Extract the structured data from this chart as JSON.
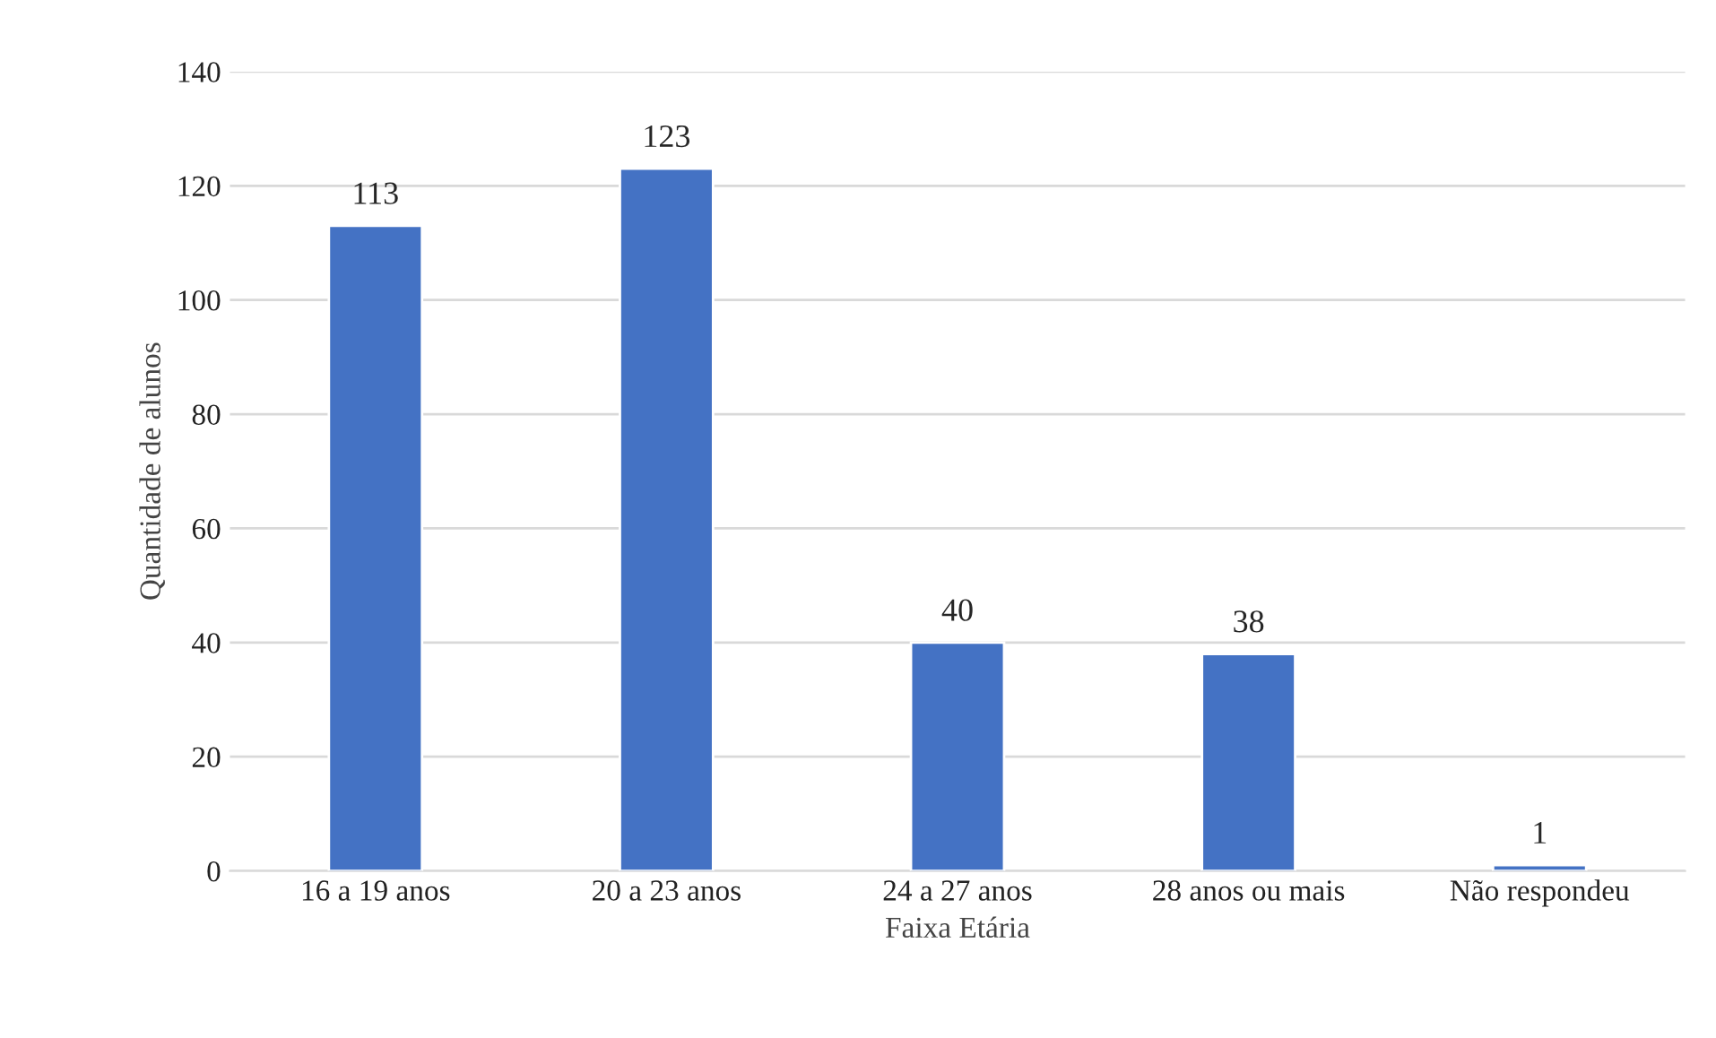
{
  "chart_data": {
    "type": "bar",
    "xlabel": "Faixa Etária",
    "ylabel": "Quantidade de alunos",
    "categories": [
      "16 a 19 anos",
      "20 a 23 anos",
      "24 a 27 anos",
      "28 anos ou mais",
      "Não respondeu"
    ],
    "values": [
      113,
      123,
      40,
      38,
      1
    ],
    "color": "#4472c4",
    "ylim": [
      0,
      140
    ],
    "yticks": [
      0,
      20,
      40,
      60,
      80,
      100,
      120,
      140
    ],
    "grid": "y",
    "data_labels": true
  }
}
